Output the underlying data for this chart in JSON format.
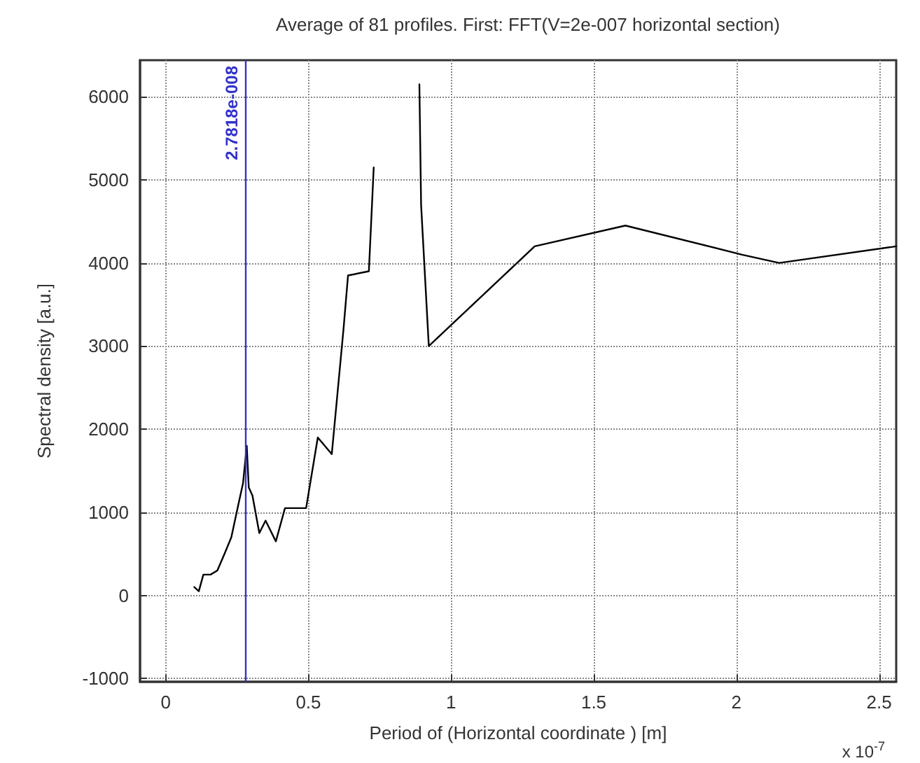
{
  "chart_data": {
    "type": "line",
    "title": "Average of 81 profiles. First: FFT(V=2e-007 horizontal section)",
    "xlabel": "Period of (Horizontal coordinate ) [m]",
    "ylabel": "Spectral density [a.u.]",
    "annotations": [
      "x 10$^{-7}$"
    ],
    "x": [
      0.1,
      0.116,
      0.132,
      0.157,
      0.181,
      0.206,
      0.23,
      0.255,
      0.271,
      0.284,
      0.291,
      0.304,
      0.328,
      0.35,
      0.386,
      0.418,
      0.443,
      0.492,
      0.533,
      0.582,
      0.623,
      0.639,
      0.712,
      0.729,
      0.737,
      0.786,
      0.876,
      0.889,
      0.895,
      0.922,
      1.293,
      1.611,
      2.02,
      2.15,
      2.56
    ],
    "series": [
      {
        "color": "#000000",
        "values": [
          100,
          50,
          250,
          250,
          300,
          500,
          700,
          1100,
          1350,
          1800,
          1300,
          1200,
          750,
          900,
          650,
          1050,
          1050,
          1050,
          1900,
          1700,
          3200,
          3850,
          3900,
          5150,
          null,
          null,
          null,
          6150,
          4700,
          3000,
          4200,
          4450,
          4100,
          4000,
          4200
        ]
      }
    ],
    "xlim": [
      -0.09,
      2.56
    ],
    "xticks": [
      0,
      0.5,
      1,
      1.5,
      2,
      2.5
    ],
    "ylim": [
      -1040,
      6440
    ],
    "yticks": [
      -1000,
      0,
      1000,
      2000,
      3000,
      4000,
      5000,
      6000
    ],
    "grid": true,
    "marker": "none",
    "ref_lines": [
      {
        "axis": "x",
        "value": 0.27818,
        "label": "2.7818e-008",
        "color": "#3333cc"
      }
    ]
  }
}
